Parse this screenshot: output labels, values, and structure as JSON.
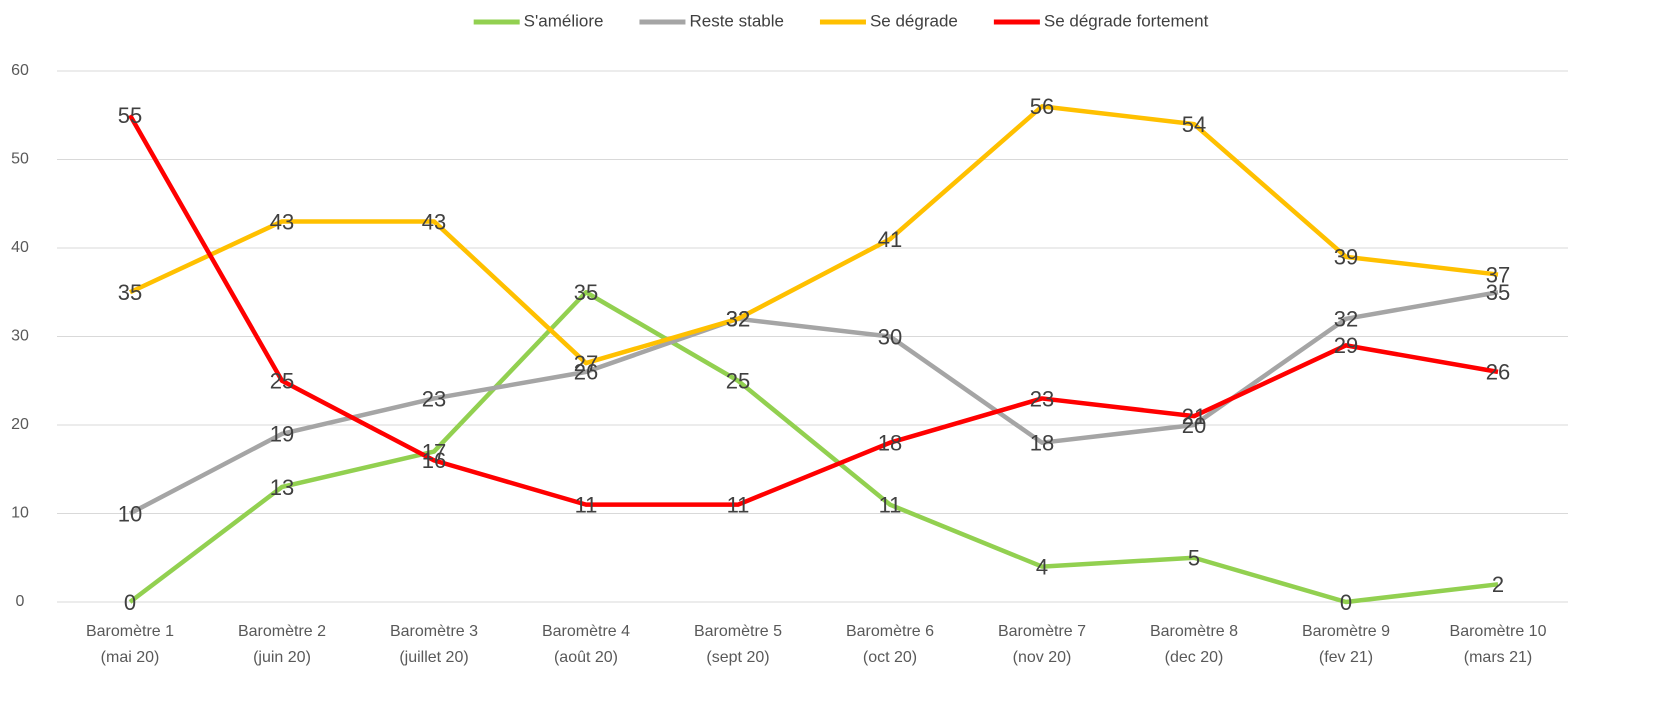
{
  "chart_data": {
    "type": "line",
    "categories": [
      [
        "Baromètre 1",
        "(mai 20)"
      ],
      [
        "Baromètre 2",
        "(juin 20)"
      ],
      [
        "Baromètre 3",
        "(juillet 20)"
      ],
      [
        "Baromètre 4",
        "(août 20)"
      ],
      [
        "Baromètre 5",
        "(sept 20)"
      ],
      [
        "Baromètre 6",
        "(oct 20)"
      ],
      [
        "Baromètre 7",
        "(nov 20)"
      ],
      [
        "Baromètre 8",
        "(dec 20)"
      ],
      [
        "Baromètre 9",
        "(fev 21)"
      ],
      [
        "Baromètre 10",
        "(mars 21)"
      ]
    ],
    "series": [
      {
        "name": "S'améliore",
        "color": "#92d050",
        "values": [
          0,
          13,
          17,
          35,
          25,
          11,
          4,
          5,
          0,
          2
        ]
      },
      {
        "name": "Reste stable",
        "color": "#a5a5a5",
        "values": [
          10,
          19,
          23,
          26,
          32,
          30,
          18,
          20,
          32,
          35
        ]
      },
      {
        "name": "Se dégrade",
        "color": "#ffc000",
        "values": [
          35,
          43,
          43,
          27,
          32,
          41,
          56,
          54,
          39,
          37
        ]
      },
      {
        "name": "Se dégrade fortement",
        "color": "#ff0000",
        "values": [
          55,
          25,
          16,
          11,
          11,
          18,
          23,
          21,
          29,
          26
        ]
      }
    ],
    "ylim": [
      0,
      60
    ],
    "yticks": [
      0,
      10,
      20,
      30,
      40,
      50,
      60
    ],
    "grid": true,
    "legend": "top"
  }
}
